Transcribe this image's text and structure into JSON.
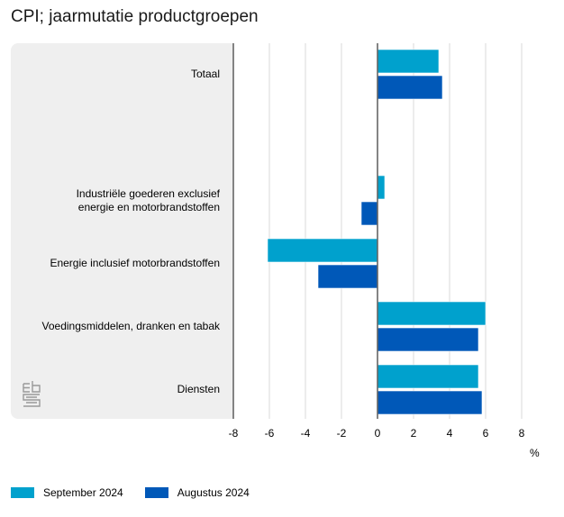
{
  "header": {
    "title": "CPI; jaarmutatie productgroepen"
  },
  "colors": {
    "september": "#00a1cd",
    "augustus": "#0058b8",
    "panel": "#efefef",
    "grid": "#d9d9d9",
    "axis": "#666666"
  },
  "logo": {
    "name": "cbs-logo",
    "text": "cbs"
  },
  "chart_data": {
    "type": "bar",
    "orientation": "horizontal",
    "title": "CPI; jaarmutatie productgroepen",
    "categories": [
      "Totaal",
      "",
      "Industriële goederen exclusief energie en motorbrandstoffen",
      "Energie inclusief motorbrandstoffen",
      "Voedingsmiddelen, dranken en tabak",
      "Diensten"
    ],
    "category_lines": [
      [
        "Totaal"
      ],
      [],
      [
        "Industriële goederen exclusief",
        "energie en motorbrandstoffen"
      ],
      [
        "Energie inclusief motorbrandstoffen"
      ],
      [
        "Voedingsmiddelen, dranken en tabak"
      ],
      [
        "Diensten"
      ]
    ],
    "series": [
      {
        "name": "September 2024",
        "color": "#00a1cd",
        "values": [
          3.4,
          null,
          0.4,
          -6.1,
          6.0,
          5.6
        ]
      },
      {
        "name": "Augustus 2024",
        "color": "#0058b8",
        "values": [
          3.6,
          null,
          -0.9,
          -3.3,
          5.6,
          5.8
        ]
      }
    ],
    "xlabel": "%",
    "xlim": [
      -8,
      8
    ],
    "xticks": [
      -8,
      -6,
      -4,
      -2,
      0,
      2,
      4,
      6,
      8
    ],
    "xtick_labels": [
      "-8",
      "-6",
      "-4",
      "-2",
      "0",
      "2",
      "4",
      "6",
      "8"
    ],
    "grid": true,
    "legend": "bottom-left"
  },
  "legend": {
    "items": [
      {
        "label": "September 2024"
      },
      {
        "label": "Augustus 2024"
      }
    ]
  }
}
